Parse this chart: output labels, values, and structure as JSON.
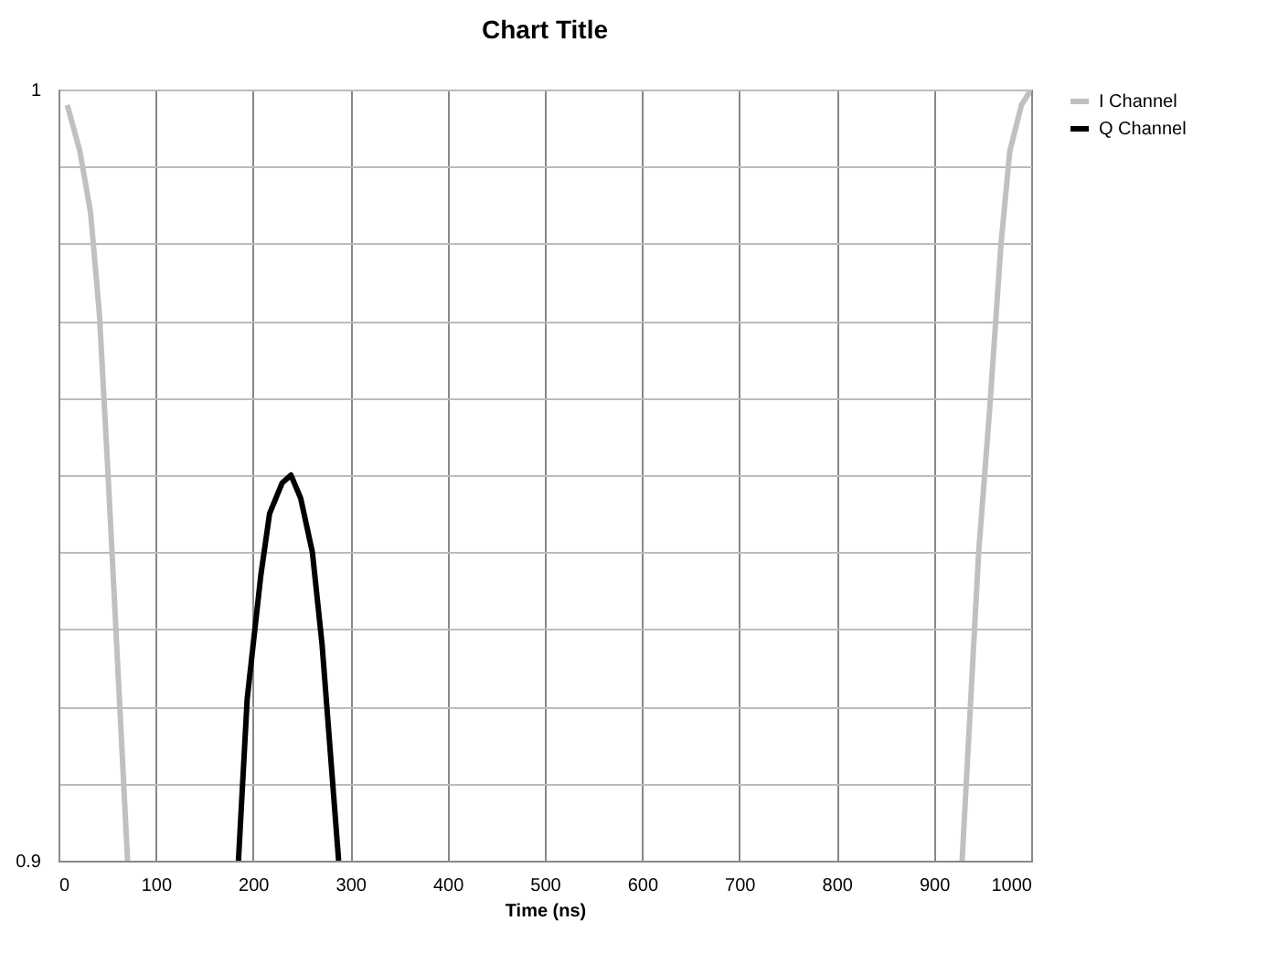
{
  "chart_data": {
    "type": "line",
    "title": "Chart Title",
    "xlabel": "Time (ns)",
    "xlim": [
      0,
      1000
    ],
    "xticks": [
      0,
      100,
      200,
      300,
      400,
      500,
      600,
      700,
      800,
      900,
      1000
    ],
    "ylim": [
      0.9,
      1
    ],
    "yticks": [
      0.9,
      {
        "value": 0.91,
        "label": null
      },
      {
        "value": 0.92,
        "label": null
      },
      {
        "value": 0.93,
        "label": null
      },
      {
        "value": 0.94,
        "label": null
      },
      {
        "value": 0.95,
        "label": null
      },
      {
        "value": 0.96,
        "label": null
      },
      {
        "value": 0.97,
        "label": null
      },
      {
        "value": 0.98,
        "label": null
      },
      {
        "value": 0.99,
        "label": null
      },
      1
    ],
    "grid": true,
    "legend": "right",
    "marker": "none",
    "line_style": "solid",
    "series": [
      {
        "name": "I Channel",
        "color": "#c0c0c0",
        "x": [
          9,
          22,
          33,
          42,
          51,
          55,
          71,
          null,
          929,
          946,
          957,
          969,
          978,
          990,
          1000
        ],
        "values": [
          0.998,
          0.992,
          0.984,
          0.971,
          0.95,
          0.94,
          0.9,
          null,
          0.9,
          0.94,
          0.958,
          0.98,
          0.992,
          0.998,
          1.0
        ]
      },
      {
        "name": "Q Channel",
        "color": "#000000",
        "x": [
          185,
          194,
          208,
          217,
          230,
          239,
          249,
          261,
          271,
          288
        ],
        "values": [
          0.9,
          0.921,
          0.937,
          0.945,
          0.949,
          0.95,
          0.947,
          0.94,
          0.928,
          0.9
        ]
      }
    ]
  }
}
